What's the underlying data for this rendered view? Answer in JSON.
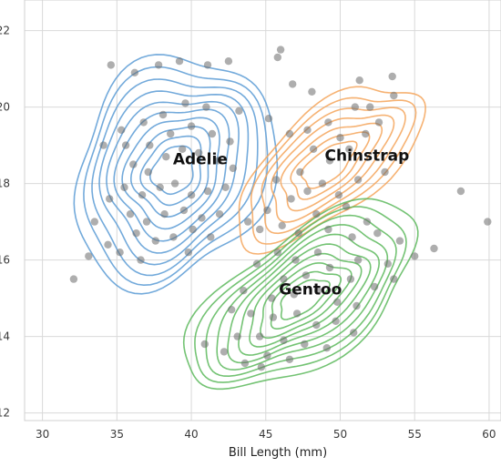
{
  "chart_data": {
    "type": "scatter",
    "title": "",
    "xlabel": "Bill Length (mm)",
    "ylabel": "",
    "xlim": [
      28.8,
      60.8
    ],
    "ylim": [
      11.8,
      22.8
    ],
    "x_ticks": [
      30,
      35,
      40,
      45,
      50,
      55,
      60
    ],
    "y_ticks": [
      12,
      14,
      16,
      18,
      20,
      22
    ],
    "grid": true,
    "colors": {
      "Adelie": "#5b9bd5",
      "Chinstrap": "#f5a55a",
      "Gentoo": "#5cb85c",
      "points": "#6b6b6b"
    },
    "annotations": [
      {
        "text": "Adelie",
        "x": 40.6,
        "y": 18.5
      },
      {
        "text": "Chinstrap",
        "x": 51.8,
        "y": 18.6
      },
      {
        "text": "Gentoo",
        "x": 48.0,
        "y": 15.1
      }
    ],
    "series": [
      {
        "label_ref": 0,
        "center": [
          38.8,
          18.35
        ],
        "spread": [
          2.7,
          1.2
        ],
        "rho": 0.2,
        "contours": 10,
        "contour_color": "Adelie"
      },
      {
        "label_ref": 1,
        "center": [
          49.2,
          18.5
        ],
        "spread": [
          3.4,
          1.15
        ],
        "rho": 0.65,
        "contours": 7,
        "contour_color": "Chinstrap"
      },
      {
        "label_ref": 2,
        "center": [
          47.5,
          15.0
        ],
        "spread": [
          3.1,
          0.98
        ],
        "rho": 0.62,
        "contours": 10,
        "contour_color": "Gentoo"
      }
    ],
    "points": [
      [
        34.6,
        21.1
      ],
      [
        36.2,
        20.9
      ],
      [
        37.8,
        21.1
      ],
      [
        39.2,
        21.2
      ],
      [
        41.1,
        21.1
      ],
      [
        42.5,
        21.2
      ],
      [
        46.0,
        21.5
      ],
      [
        45.8,
        21.3
      ],
      [
        46.8,
        20.6
      ],
      [
        48.1,
        20.4
      ],
      [
        51.3,
        20.7
      ],
      [
        53.5,
        20.8
      ],
      [
        53.6,
        20.3
      ],
      [
        52.0,
        20.0
      ],
      [
        51.0,
        20.0
      ],
      [
        49.2,
        19.6
      ],
      [
        47.8,
        19.4
      ],
      [
        46.6,
        19.3
      ],
      [
        45.2,
        19.7
      ],
      [
        43.2,
        19.9
      ],
      [
        41.0,
        20.0
      ],
      [
        39.6,
        20.1
      ],
      [
        38.1,
        19.8
      ],
      [
        36.8,
        19.6
      ],
      [
        35.3,
        19.4
      ],
      [
        34.1,
        19.0
      ],
      [
        35.6,
        19.0
      ],
      [
        37.2,
        19.0
      ],
      [
        38.6,
        19.3
      ],
      [
        40.0,
        19.5
      ],
      [
        41.4,
        19.3
      ],
      [
        42.6,
        19.1
      ],
      [
        36.1,
        18.5
      ],
      [
        37.1,
        18.3
      ],
      [
        38.3,
        18.7
      ],
      [
        39.4,
        18.9
      ],
      [
        40.5,
        18.8
      ],
      [
        41.8,
        18.6
      ],
      [
        42.8,
        18.4
      ],
      [
        35.5,
        17.9
      ],
      [
        36.7,
        17.7
      ],
      [
        37.9,
        17.9
      ],
      [
        38.9,
        18.0
      ],
      [
        40.0,
        17.7
      ],
      [
        41.1,
        17.8
      ],
      [
        42.3,
        17.9
      ],
      [
        34.5,
        17.6
      ],
      [
        35.9,
        17.2
      ],
      [
        37.0,
        17.0
      ],
      [
        38.2,
        17.2
      ],
      [
        39.5,
        17.3
      ],
      [
        40.7,
        17.1
      ],
      [
        41.9,
        17.2
      ],
      [
        36.3,
        16.7
      ],
      [
        37.6,
        16.5
      ],
      [
        38.8,
        16.6
      ],
      [
        40.1,
        16.8
      ],
      [
        33.5,
        17.0
      ],
      [
        35.2,
        16.2
      ],
      [
        36.6,
        16.0
      ],
      [
        33.1,
        16.1
      ],
      [
        34.4,
        16.4
      ],
      [
        32.1,
        15.5
      ],
      [
        39.8,
        16.2
      ],
      [
        41.3,
        16.6
      ],
      [
        43.8,
        17.0
      ],
      [
        48.2,
        18.9
      ],
      [
        49.3,
        18.6
      ],
      [
        50.6,
        18.9
      ],
      [
        51.7,
        19.3
      ],
      [
        52.6,
        19.6
      ],
      [
        50.0,
        19.2
      ],
      [
        47.3,
        18.3
      ],
      [
        48.8,
        18.0
      ],
      [
        45.7,
        18.1
      ],
      [
        46.7,
        17.6
      ],
      [
        47.8,
        17.8
      ],
      [
        49.9,
        17.7
      ],
      [
        51.2,
        18.1
      ],
      [
        53.0,
        18.3
      ],
      [
        48.4,
        17.2
      ],
      [
        50.4,
        17.4
      ],
      [
        45.1,
        17.3
      ],
      [
        44.6,
        16.8
      ],
      [
        46.1,
        16.9
      ],
      [
        47.2,
        16.7
      ],
      [
        49.2,
        16.8
      ],
      [
        50.8,
        16.6
      ],
      [
        51.8,
        17.0
      ],
      [
        52.5,
        16.7
      ],
      [
        54.0,
        16.5
      ],
      [
        55.0,
        16.1
      ],
      [
        53.2,
        15.9
      ],
      [
        51.2,
        16.0
      ],
      [
        48.5,
        16.2
      ],
      [
        47.0,
        16.0
      ],
      [
        45.8,
        16.2
      ],
      [
        44.4,
        15.9
      ],
      [
        46.2,
        15.5
      ],
      [
        47.7,
        15.6
      ],
      [
        49.3,
        15.8
      ],
      [
        50.7,
        15.5
      ],
      [
        52.3,
        15.3
      ],
      [
        53.6,
        15.5
      ],
      [
        45.4,
        15.0
      ],
      [
        46.9,
        15.1
      ],
      [
        48.5,
        15.2
      ],
      [
        49.8,
        14.9
      ],
      [
        51.1,
        14.8
      ],
      [
        44.0,
        14.6
      ],
      [
        45.5,
        14.5
      ],
      [
        47.1,
        14.6
      ],
      [
        48.4,
        14.3
      ],
      [
        49.7,
        14.4
      ],
      [
        50.9,
        14.1
      ],
      [
        43.1,
        14.0
      ],
      [
        44.6,
        14.0
      ],
      [
        46.2,
        13.9
      ],
      [
        47.6,
        13.8
      ],
      [
        49.1,
        13.7
      ],
      [
        45.1,
        13.5
      ],
      [
        46.6,
        13.4
      ],
      [
        42.2,
        13.6
      ],
      [
        43.6,
        13.3
      ],
      [
        44.7,
        13.2
      ],
      [
        42.7,
        14.7
      ],
      [
        43.5,
        15.2
      ],
      [
        40.9,
        13.8
      ],
      [
        58.1,
        17.8
      ],
      [
        59.9,
        17.0
      ],
      [
        56.3,
        16.3
      ]
    ]
  }
}
